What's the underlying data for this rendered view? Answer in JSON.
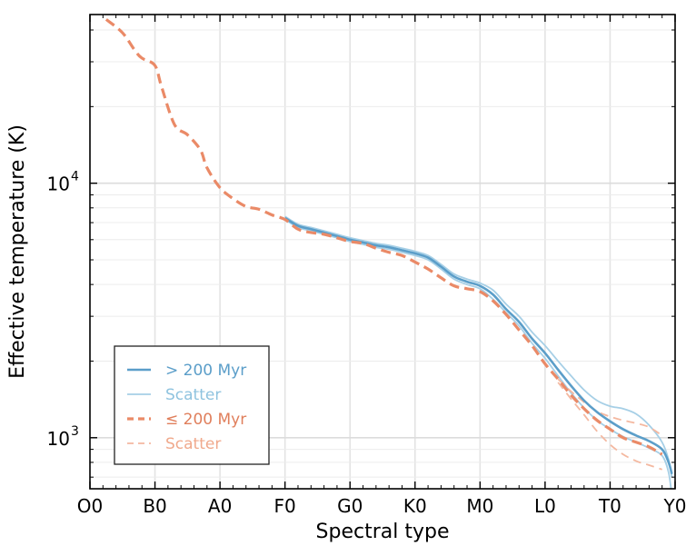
{
  "chart_data": {
    "type": "line",
    "title": "",
    "xlabel": "Spectral type",
    "ylabel": "Effective temperature (K)",
    "xscale": "linear",
    "yscale": "log",
    "xlim": [
      0,
      90
    ],
    "ylim": [
      630,
      46000
    ],
    "x_ticks": [
      {
        "value": 0,
        "label": "O0"
      },
      {
        "value": 10,
        "label": "B0"
      },
      {
        "value": 20,
        "label": "A0"
      },
      {
        "value": 30,
        "label": "F0"
      },
      {
        "value": 40,
        "label": "G0"
      },
      {
        "value": 50,
        "label": "K0"
      },
      {
        "value": 60,
        "label": "M0"
      },
      {
        "value": 70,
        "label": "L0"
      },
      {
        "value": 80,
        "label": "T0"
      },
      {
        "value": 90,
        "label": "Y0"
      }
    ],
    "y_major_ticks": [
      {
        "value": 1000,
        "base": "10",
        "exp": "3"
      },
      {
        "value": 10000,
        "base": "10",
        "exp": "4"
      }
    ],
    "grid": true,
    "legend_position": "lower-left",
    "series": [
      {
        "name": "> 200 Myr",
        "style": "solid",
        "color": "#5b9ec9",
        "weight": "main",
        "x": [
          30,
          32,
          34,
          36,
          38,
          40,
          42,
          44,
          46,
          48,
          50,
          52,
          54,
          56,
          58,
          60,
          62,
          64,
          66,
          68,
          70,
          72,
          74,
          76,
          78,
          80,
          82,
          84,
          86,
          88,
          89,
          89.5
        ],
        "y": [
          7300,
          6800,
          6600,
          6400,
          6200,
          6000,
          5850,
          5700,
          5600,
          5450,
          5300,
          5100,
          4700,
          4300,
          4100,
          3950,
          3650,
          3200,
          2850,
          2450,
          2150,
          1850,
          1600,
          1400,
          1260,
          1160,
          1080,
          1020,
          970,
          900,
          800,
          720
        ]
      },
      {
        "name": "Scatter",
        "style": "solid",
        "color": "#a6cfe6",
        "weight": "thin",
        "x": [
          30,
          32,
          34,
          36,
          38,
          40,
          42,
          44,
          46,
          48,
          50,
          52,
          54,
          56,
          58,
          60,
          62,
          64,
          66,
          68,
          70,
          72,
          74,
          76,
          78,
          80,
          82,
          84,
          86,
          88,
          89,
          89.5
        ],
        "y": [
          7400,
          6900,
          6700,
          6500,
          6300,
          6100,
          5950,
          5800,
          5700,
          5550,
          5400,
          5200,
          4800,
          4400,
          4200,
          4050,
          3800,
          3350,
          3000,
          2600,
          2300,
          2000,
          1750,
          1540,
          1400,
          1330,
          1300,
          1240,
          1120,
          960,
          820,
          700
        ]
      },
      {
        "name": "Scatter",
        "style": "solid",
        "color": "#a6cfe6",
        "weight": "thin",
        "x": [
          30,
          32,
          34,
          36,
          38,
          40,
          42,
          44,
          46,
          48,
          50,
          52,
          54,
          56,
          58,
          60,
          62,
          64,
          66,
          68,
          70,
          72,
          74,
          76,
          78,
          80,
          82,
          84,
          86,
          88,
          89,
          89.5
        ],
        "y": [
          7200,
          6700,
          6500,
          6300,
          6100,
          5900,
          5750,
          5600,
          5500,
          5350,
          5200,
          5000,
          4600,
          4200,
          4000,
          3850,
          3500,
          3100,
          2750,
          2350,
          2050,
          1750,
          1500,
          1310,
          1170,
          1080,
          1010,
          960,
          910,
          850,
          730,
          590
        ]
      },
      {
        "name": "≤ 200 Myr",
        "style": "dashed",
        "color": "#ea8a67",
        "weight": "main",
        "x": [
          2.5,
          5,
          7,
          8,
          10,
          11,
          13,
          15,
          17,
          18,
          20,
          22,
          24,
          26,
          28,
          30,
          32,
          34,
          36,
          38,
          40,
          42,
          44,
          46,
          48,
          50,
          52,
          54,
          56,
          58,
          60,
          62,
          64,
          66,
          68,
          70,
          72,
          74,
          76,
          78,
          80,
          82,
          84,
          86,
          88
        ],
        "y": [
          44000,
          39000,
          33000,
          31000,
          29000,
          24000,
          17000,
          15500,
          13500,
          11500,
          9600,
          8700,
          8100,
          7900,
          7500,
          7200,
          6600,
          6400,
          6300,
          6100,
          5900,
          5800,
          5550,
          5350,
          5200,
          4900,
          4600,
          4250,
          3950,
          3850,
          3750,
          3450,
          3050,
          2650,
          2300,
          1950,
          1700,
          1470,
          1300,
          1170,
          1080,
          1000,
          960,
          920,
          860
        ]
      },
      {
        "name": "Scatter",
        "style": "dashed",
        "color": "#f4b8a0",
        "weight": "thin",
        "x": [
          72,
          74,
          76,
          78,
          80,
          82,
          84,
          86,
          88
        ],
        "y": [
          1700,
          1520,
          1380,
          1270,
          1210,
          1170,
          1140,
          1100,
          1020
        ]
      },
      {
        "name": "Scatter",
        "style": "dashed",
        "color": "#f4b8a0",
        "weight": "thin",
        "x": [
          72,
          74,
          76,
          78,
          80,
          82,
          84,
          86,
          88
        ],
        "y": [
          1650,
          1420,
          1230,
          1060,
          940,
          860,
          810,
          780,
          750
        ]
      }
    ],
    "legend": [
      {
        "label": "> 200 Myr",
        "style": "solid",
        "color": "#5b9ec9",
        "text_color": "#5b9ec9"
      },
      {
        "label": "Scatter",
        "style": "solid",
        "color": "#a6cfe6",
        "text_color": "#8fc3df"
      },
      {
        "label": "≤ 200 Myr",
        "style": "dashed",
        "color": "#ea8a67",
        "text_color": "#e07f5c"
      },
      {
        "label": "Scatter",
        "style": "dashed",
        "color": "#f4b8a0",
        "text_color": "#f0a98c"
      }
    ]
  }
}
